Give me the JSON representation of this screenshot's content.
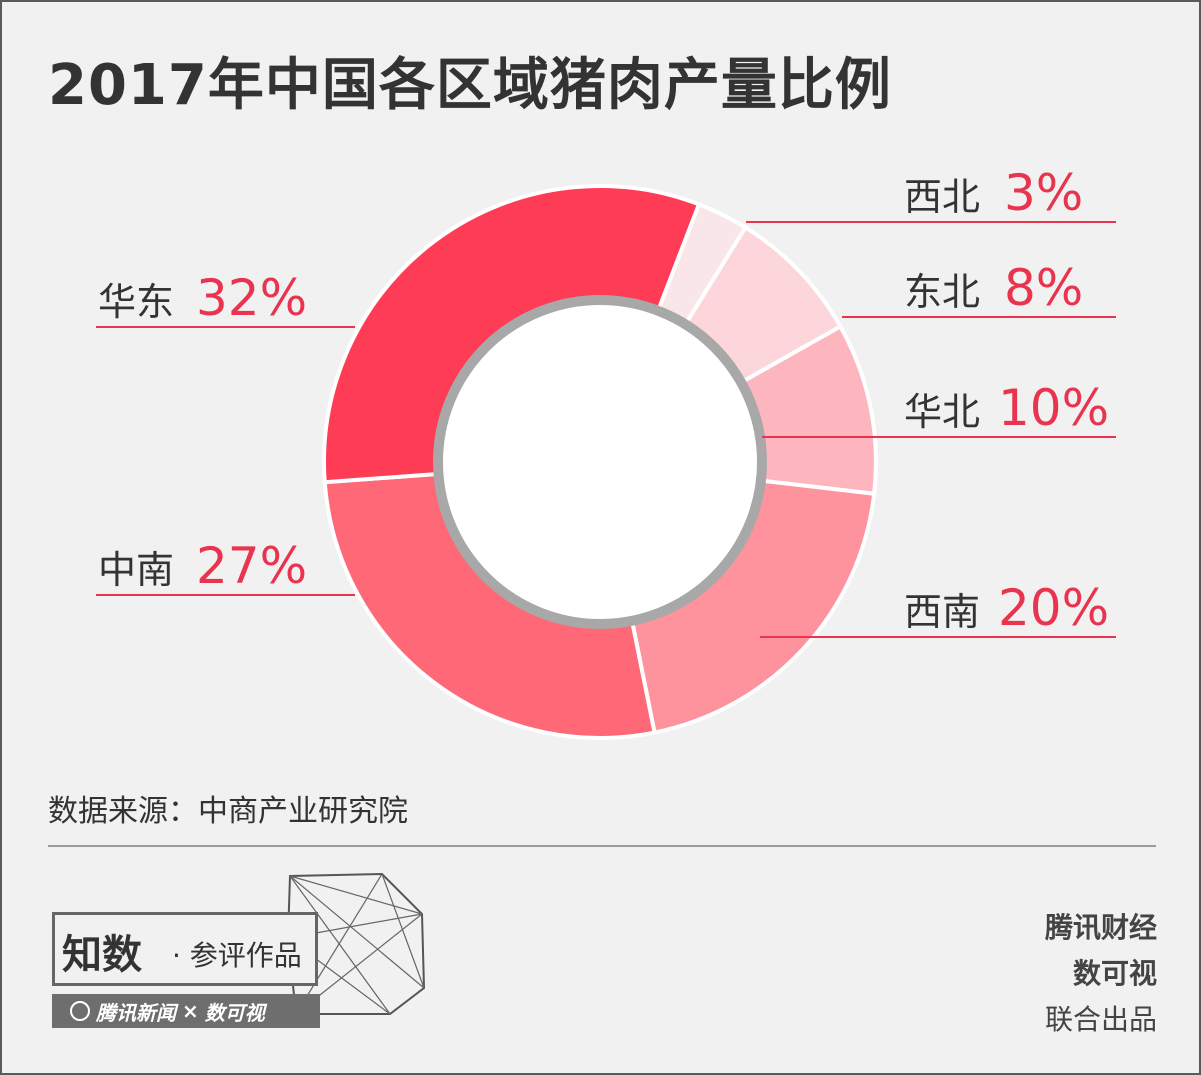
{
  "title": "2017年中国各区域猪肉产量比例",
  "source": "数据来源：中商产业研究院",
  "chart_data": {
    "type": "pie",
    "title": "2017年中国各区域猪肉产量比例",
    "unit": "%",
    "slices": [
      {
        "name": "西北",
        "value": 3,
        "label": "3%",
        "color": "#f8e6e8"
      },
      {
        "name": "东北",
        "value": 8,
        "label": "8%",
        "color": "#fdd6dc"
      },
      {
        "name": "华北",
        "value": 10,
        "label": "10%",
        "color": "#fdb5be"
      },
      {
        "name": "西南",
        "value": 20,
        "label": "20%",
        "color": "#fe939d"
      },
      {
        "name": "中南",
        "value": 27,
        "label": "27%",
        "color": "#fe6877"
      },
      {
        "name": "华东",
        "value": 32,
        "label": "32%",
        "color": "#ff3c55"
      }
    ],
    "legend": "none"
  },
  "colors": {
    "label_value": "#e8344f",
    "label_name": "#333333",
    "leader_line": "#e8344f",
    "inner_ring": "#a8a8a8"
  },
  "badge": {
    "main": "知数",
    "sub": "· 参评作品",
    "strip_left": "腾讯新闻",
    "strip_x": "×",
    "strip_right": "数可视",
    "logo_icon": "tencent-news-icon"
  },
  "credits": {
    "line1": "腾讯财经",
    "line2": "数可视",
    "line3": "联合出品"
  }
}
